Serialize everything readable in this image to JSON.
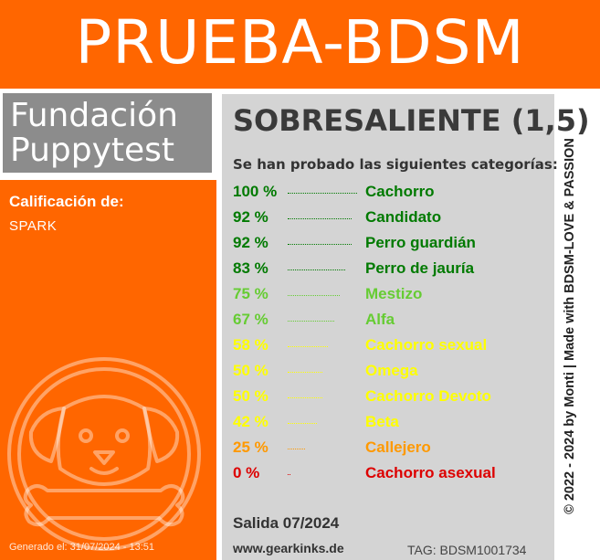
{
  "header": {
    "title": "PRUEBA-BDSM"
  },
  "foundation": {
    "line1": "Fundación",
    "line2": "Puppytest"
  },
  "grade": {
    "label": "Calificación de:",
    "name": "SPARK"
  },
  "generated": "Generado el: 31/07/2024 - 13:51",
  "result": {
    "rating": "SOBRESALIENTE (1,5)",
    "intro": "Se han probado las siguientes categorías:"
  },
  "categories": [
    {
      "percent": "100 %",
      "name": "Cachorro",
      "value": 100,
      "color": "#007a00"
    },
    {
      "percent": "92 %",
      "name": "Candidato",
      "value": 92,
      "color": "#007a00"
    },
    {
      "percent": "92 %",
      "name": "Perro guardián",
      "value": 92,
      "color": "#007a00"
    },
    {
      "percent": "83 %",
      "name": "Perro de jauría",
      "value": 83,
      "color": "#007a00"
    },
    {
      "percent": "75 %",
      "name": "Mestizo",
      "value": 75,
      "color": "#66cc33"
    },
    {
      "percent": "67 %",
      "name": "Alfa",
      "value": 67,
      "color": "#66cc33"
    },
    {
      "percent": "58 %",
      "name": "Cachorro sexual",
      "value": 58,
      "color": "#ffff00"
    },
    {
      "percent": "50 %",
      "name": "Omega",
      "value": 50,
      "color": "#ffff00"
    },
    {
      "percent": "50 %",
      "name": "Cachorro Devoto",
      "value": 50,
      "color": "#ffff00"
    },
    {
      "percent": "42 %",
      "name": "Beta",
      "value": 42,
      "color": "#ffff00"
    },
    {
      "percent": "25 %",
      "name": "Callejero",
      "value": 25,
      "color": "#ff9900"
    },
    {
      "percent": "0 %",
      "name": "Cachorro asexual",
      "value": 0,
      "color": "#dd0000"
    }
  ],
  "footer": {
    "release": "Salida 07/2024",
    "website": "www.gearkinks.de",
    "tag": "TAG: BDSM1001734"
  },
  "copyright": "© 2022 - 2024 by Monti | Made with BDSM-LOVE & PASSION",
  "colors": {
    "accent": "#ff6600",
    "panel": "#d4d4d4",
    "label_box": "#8c8c8c"
  },
  "logo_icon": "dog-bone-icon"
}
